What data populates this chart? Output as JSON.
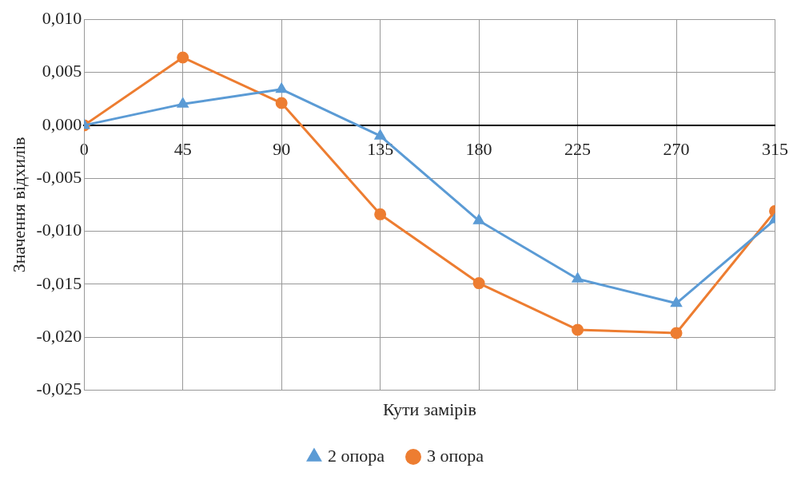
{
  "chart_data": {
    "type": "line",
    "xlabel": "Кути замірів",
    "ylabel": "Значення відхилів",
    "x": [
      0,
      45,
      90,
      135,
      180,
      225,
      270,
      315
    ],
    "xlim": [
      0,
      315
    ],
    "xticks": [
      0,
      45,
      90,
      135,
      180,
      225,
      270,
      315
    ],
    "ylim": [
      -0.025,
      0.01
    ],
    "yticks": [
      {
        "value": -0.025,
        "label": "-0,025"
      },
      {
        "value": -0.02,
        "label": "-0,020"
      },
      {
        "value": -0.015,
        "label": "-0,015"
      },
      {
        "value": -0.01,
        "label": "-0,010"
      },
      {
        "value": -0.005,
        "label": "-0,005"
      },
      {
        "value": 0,
        "label": "0,000"
      },
      {
        "value": 0.005,
        "label": "0,005"
      },
      {
        "value": 0.01,
        "label": "0,010"
      }
    ],
    "grid": true,
    "legend": "bottom",
    "line_style": "solid",
    "series": [
      {
        "name": "2 опора",
        "color": "#5b9bd5",
        "marker": "triangle",
        "values": [
          0,
          0.002,
          0.0034,
          -0.001,
          -0.009,
          -0.0145,
          -0.0168,
          -0.0089
        ]
      },
      {
        "name": "3 опора",
        "color": "#ed7d31",
        "marker": "circle",
        "values": [
          0,
          0.0064,
          0.0021,
          -0.0084,
          -0.0149,
          -0.0193,
          -0.0196,
          -0.0081
        ]
      }
    ]
  }
}
